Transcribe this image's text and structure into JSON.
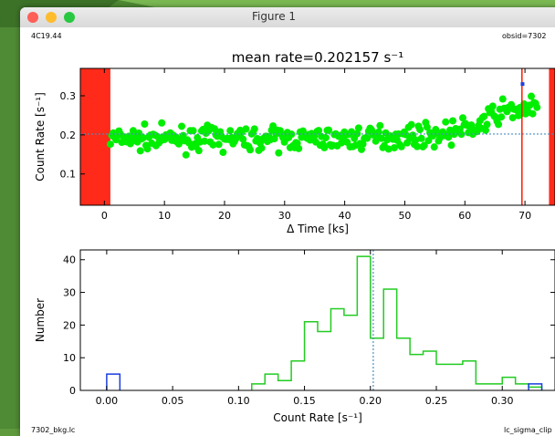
{
  "window": {
    "title": "Figure 1",
    "controls": [
      "close-button",
      "minimize-button",
      "zoom-button"
    ],
    "colors": {
      "close": "#fe5f57",
      "minimize": "#febc2e",
      "zoom": "#28c840"
    }
  },
  "figure": {
    "source_label": "4C19.44",
    "obsid_label": "obsid=7302",
    "bottom_left_label": "7302_bkg.lc",
    "bottom_right_label": "lc_sigma_clip",
    "colors": {
      "points": "#00ee00",
      "flagged_point": "#1a3fe0",
      "excluded_region": "#ff2a1a",
      "marker_line": "#ff1a00",
      "mean_line": "#4a8fc0",
      "hist_green": "#22cc22",
      "hist_blue": "#1a3fe0"
    }
  },
  "chart_data": [
    {
      "type": "scatter",
      "title": "mean rate=0.202157 s⁻¹",
      "xlabel": "Δ Time [ks]",
      "ylabel": "Count Rate [s⁻¹]",
      "xlim": [
        -4,
        75
      ],
      "ylim": [
        0.02,
        0.37
      ],
      "x_ticks": [
        0,
        10,
        20,
        30,
        40,
        50,
        60,
        70
      ],
      "y_ticks": [
        0.1,
        0.2,
        0.3
      ],
      "x_tick_labels": [
        "0",
        "10",
        "20",
        "30",
        "40",
        "50",
        "60",
        "70"
      ],
      "y_tick_labels": [
        "0.1",
        "0.2",
        "0.3"
      ],
      "mean_rate": 0.202157,
      "excluded_regions": [
        [
          -4,
          1
        ],
        [
          74,
          75
        ]
      ],
      "marker_x": 69.5,
      "flagged_point": [
        69.6,
        0.33
      ],
      "trend": [
        [
          1,
          0.19
        ],
        [
          20,
          0.19
        ],
        [
          40,
          0.19
        ],
        [
          55,
          0.2
        ],
        [
          62,
          0.22
        ],
        [
          66,
          0.26
        ],
        [
          72,
          0.27
        ]
      ],
      "n_points": 300,
      "scatter": 0.02
    },
    {
      "type": "bar",
      "xlabel": "Count Rate [s⁻¹]",
      "ylabel": "Number",
      "xlim": [
        -0.02,
        0.34
      ],
      "ylim": [
        0,
        43
      ],
      "x_ticks": [
        0.0,
        0.05,
        0.1,
        0.15,
        0.2,
        0.25,
        0.3
      ],
      "y_ticks": [
        0,
        10,
        20,
        30,
        40
      ],
      "x_tick_labels": [
        "0.00",
        "0.05",
        "0.10",
        "0.15",
        "0.20",
        "0.25",
        "0.30"
      ],
      "y_tick_labels": [
        "0",
        "10",
        "20",
        "30",
        "40"
      ],
      "mean_rate": 0.202157,
      "bin_width": 0.01,
      "series": [
        {
          "color": "green",
          "bins_start": 0.11,
          "values": [
            2,
            5,
            3,
            9,
            21,
            18,
            25,
            23,
            41,
            16,
            31,
            16,
            11,
            12,
            8,
            8,
            9,
            2,
            2,
            4,
            2,
            1
          ]
        },
        {
          "color": "blue",
          "bins_start": 0.0,
          "values": [
            5
          ]
        },
        {
          "color": "blue",
          "bins_start": 0.32,
          "values": [
            2
          ]
        }
      ]
    }
  ]
}
